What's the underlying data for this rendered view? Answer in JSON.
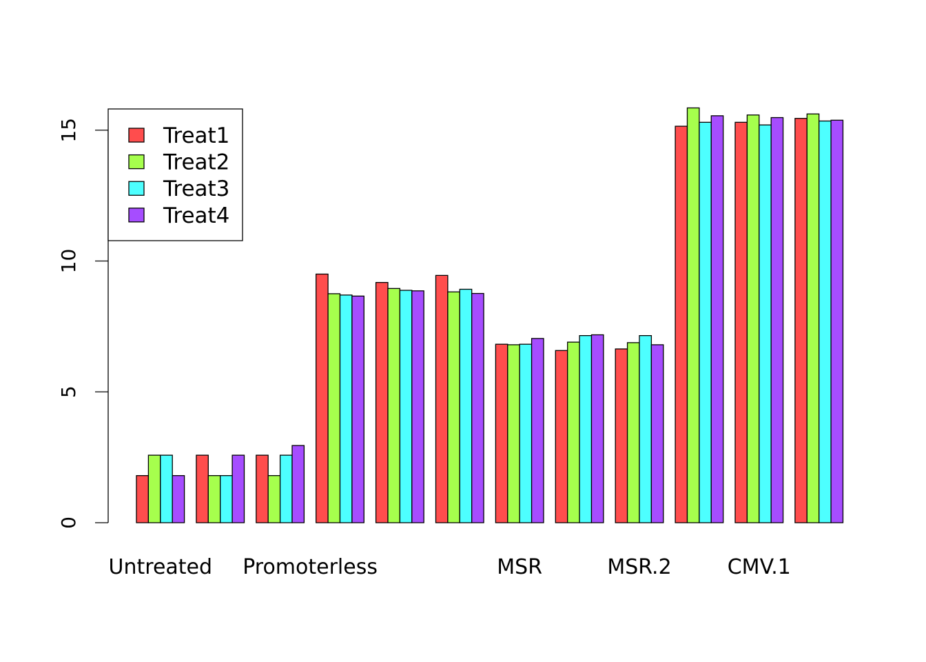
{
  "chart_data": {
    "type": "bar",
    "categories": [
      "Untreated",
      "",
      "Promoterless",
      "",
      "",
      "MSR",
      "",
      "MSR.2",
      "",
      "CMV.1",
      "",
      ""
    ],
    "x_labels": [
      {
        "label": "Untreated",
        "group_start": 0,
        "group_end": 0
      },
      {
        "label": "Promoterless",
        "group_start": 2,
        "group_end": 3
      },
      {
        "label": "MSR",
        "group_start": 6,
        "group_end": 6
      },
      {
        "label": "MSR.2",
        "group_start": 8,
        "group_end": 8
      },
      {
        "label": "CMV.1",
        "group_start": 10,
        "group_end": 10
      }
    ],
    "series": [
      {
        "name": "Treat1",
        "color": "#FF4D4D",
        "values": [
          1.8,
          2.58,
          2.58,
          9.5,
          9.18,
          9.45,
          6.82,
          6.58,
          6.64,
          15.15,
          15.3,
          15.45
        ]
      },
      {
        "name": "Treat2",
        "color": "#A6FF4D",
        "values": [
          2.58,
          1.8,
          1.8,
          8.75,
          8.95,
          8.82,
          6.8,
          6.9,
          6.88,
          15.85,
          15.58,
          15.62
        ]
      },
      {
        "name": "Treat3",
        "color": "#4DFFFF",
        "values": [
          2.58,
          1.8,
          2.58,
          8.7,
          8.88,
          8.92,
          6.82,
          7.15,
          7.15,
          15.3,
          15.2,
          15.35
        ]
      },
      {
        "name": "Treat4",
        "color": "#A64DFF",
        "values": [
          1.8,
          2.58,
          2.95,
          8.66,
          8.86,
          8.76,
          7.04,
          7.18,
          6.8,
          15.55,
          15.48,
          15.38
        ]
      }
    ],
    "yticks": [
      0,
      5,
      10,
      15
    ],
    "ylim": [
      0,
      16
    ],
    "xlabel": "",
    "ylabel": "",
    "title": "",
    "legend_position": "top-left",
    "grid": false
  }
}
